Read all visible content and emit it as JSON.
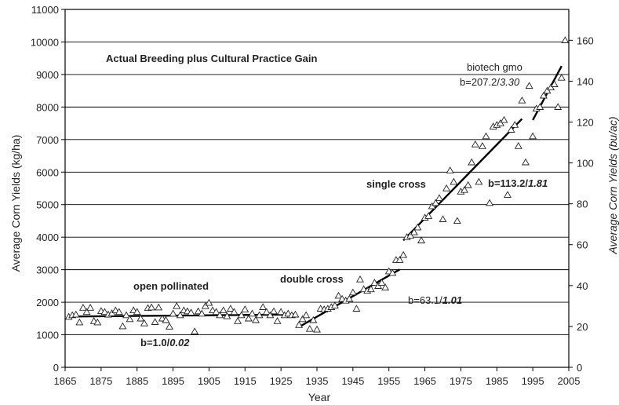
{
  "chart_data": {
    "type": "scatter",
    "title": "Actual Breeding plus Cultural Practice Gain",
    "xlabel": "Year",
    "ylabel": "Average Corn Yields (kg/ha)",
    "y2label": "Average Corn Yields (bu/ac)",
    "xlim": [
      1865,
      2005
    ],
    "ylim": [
      0,
      11000
    ],
    "y2lim": [
      0,
      175.1
    ],
    "x_ticks": [
      1865,
      1875,
      1885,
      1895,
      1905,
      1915,
      1925,
      1935,
      1945,
      1955,
      1965,
      1975,
      1985,
      1995,
      2005
    ],
    "y_ticks": [
      0,
      1000,
      2000,
      3000,
      4000,
      5000,
      6000,
      7000,
      8000,
      9000,
      10000,
      11000
    ],
    "y2_ticks": [
      0,
      20,
      40,
      60,
      80,
      100,
      120,
      140,
      160
    ],
    "gridlines": "horizontal",
    "marker": "open-triangle",
    "series": [
      {
        "points": [
          [
            1866,
            1550
          ],
          [
            1867,
            1600
          ],
          [
            1868,
            1620
          ],
          [
            1869,
            1380
          ],
          [
            1870,
            1830
          ],
          [
            1871,
            1700
          ],
          [
            1872,
            1830
          ],
          [
            1873,
            1420
          ],
          [
            1874,
            1380
          ],
          [
            1875,
            1730
          ],
          [
            1876,
            1700
          ],
          [
            1877,
            1620
          ],
          [
            1878,
            1660
          ],
          [
            1879,
            1750
          ],
          [
            1880,
            1700
          ],
          [
            1881,
            1260
          ],
          [
            1882,
            1600
          ],
          [
            1883,
            1480
          ],
          [
            1884,
            1750
          ],
          [
            1885,
            1700
          ],
          [
            1886,
            1500
          ],
          [
            1887,
            1350
          ],
          [
            1888,
            1820
          ],
          [
            1889,
            1840
          ],
          [
            1890,
            1390
          ],
          [
            1891,
            1840
          ],
          [
            1892,
            1500
          ],
          [
            1893,
            1450
          ],
          [
            1894,
            1250
          ],
          [
            1895,
            1650
          ],
          [
            1896,
            1880
          ],
          [
            1897,
            1600
          ],
          [
            1898,
            1750
          ],
          [
            1899,
            1720
          ],
          [
            1900,
            1680
          ],
          [
            1901,
            1100
          ],
          [
            1902,
            1720
          ],
          [
            1903,
            1650
          ],
          [
            1904,
            1880
          ],
          [
            1905,
            1980
          ],
          [
            1906,
            1750
          ],
          [
            1907,
            1700
          ],
          [
            1908,
            1600
          ],
          [
            1909,
            1750
          ],
          [
            1910,
            1570
          ],
          [
            1911,
            1800
          ],
          [
            1912,
            1700
          ],
          [
            1913,
            1420
          ],
          [
            1914,
            1600
          ],
          [
            1915,
            1780
          ],
          [
            1916,
            1500
          ],
          [
            1917,
            1650
          ],
          [
            1918,
            1450
          ],
          [
            1919,
            1600
          ],
          [
            1920,
            1850
          ],
          [
            1921,
            1700
          ],
          [
            1922,
            1600
          ],
          [
            1923,
            1720
          ],
          [
            1924,
            1420
          ],
          [
            1925,
            1700
          ],
          [
            1926,
            1600
          ],
          [
            1927,
            1650
          ],
          [
            1928,
            1600
          ],
          [
            1929,
            1620
          ],
          [
            1930,
            1300
          ],
          [
            1931,
            1480
          ],
          [
            1932,
            1600
          ],
          [
            1933,
            1180
          ],
          [
            1934,
            1450
          ],
          [
            1935,
            1160
          ],
          [
            1936,
            1800
          ],
          [
            1937,
            1780
          ],
          [
            1938,
            1800
          ],
          [
            1939,
            1850
          ],
          [
            1940,
            1900
          ],
          [
            1941,
            2200
          ],
          [
            1942,
            2100
          ],
          [
            1943,
            2050
          ],
          [
            1944,
            2100
          ],
          [
            1945,
            2300
          ],
          [
            1946,
            1800
          ],
          [
            1947,
            2700
          ],
          [
            1948,
            2400
          ],
          [
            1949,
            2350
          ],
          [
            1950,
            2400
          ],
          [
            1951,
            2600
          ],
          [
            1952,
            2500
          ],
          [
            1953,
            2600
          ],
          [
            1954,
            2450
          ],
          [
            1955,
            2950
          ],
          [
            1956,
            2900
          ],
          [
            1957,
            3300
          ],
          [
            1958,
            3300
          ],
          [
            1959,
            3450
          ],
          [
            1960,
            4000
          ],
          [
            1961,
            4050
          ],
          [
            1962,
            4150
          ],
          [
            1963,
            4300
          ],
          [
            1964,
            3900
          ],
          [
            1965,
            4600
          ],
          [
            1966,
            4650
          ],
          [
            1967,
            4950
          ],
          [
            1968,
            5050
          ],
          [
            1969,
            5200
          ],
          [
            1970,
            4550
          ],
          [
            1971,
            5500
          ],
          [
            1972,
            6050
          ],
          [
            1973,
            5700
          ],
          [
            1974,
            4500
          ],
          [
            1975,
            5400
          ],
          [
            1976,
            5450
          ],
          [
            1977,
            5600
          ],
          [
            1978,
            6300
          ],
          [
            1979,
            6850
          ],
          [
            1980,
            5700
          ],
          [
            1981,
            6800
          ],
          [
            1982,
            7100
          ],
          [
            1983,
            5050
          ],
          [
            1984,
            7400
          ],
          [
            1985,
            7450
          ],
          [
            1986,
            7500
          ],
          [
            1987,
            7600
          ],
          [
            1988,
            5300
          ],
          [
            1989,
            7300
          ],
          [
            1990,
            7450
          ],
          [
            1991,
            6800
          ],
          [
            1992,
            8200
          ],
          [
            1993,
            6300
          ],
          [
            1994,
            8650
          ],
          [
            1995,
            7100
          ],
          [
            1996,
            7950
          ],
          [
            1997,
            8000
          ],
          [
            1998,
            8350
          ],
          [
            1999,
            8500
          ],
          [
            2000,
            8600
          ],
          [
            2001,
            8700
          ],
          [
            2002,
            8000
          ],
          [
            2003,
            8900
          ],
          [
            2004,
            10050
          ]
        ]
      }
    ],
    "trend_lines": [
      {
        "label": "b=1.0/",
        "label_italic": "0.02",
        "x": [
          1866,
          1929
        ],
        "y": [
          1560,
          1623
        ]
      },
      {
        "label": "b=63.1/",
        "label_italic": "1.01",
        "x": [
          1930,
          1958
        ],
        "y": [
          1240,
          3007
        ]
      },
      {
        "label": "b=113.2/",
        "label_italic": "1.81",
        "x": [
          1959,
          1992
        ],
        "y": [
          3900,
          7636
        ]
      },
      {
        "label": "b=207.2/",
        "label_italic": "3.30",
        "x": [
          1995,
          2003
        ],
        "y": [
          7600,
          9258
        ]
      }
    ],
    "annotations": [
      "open pollinated",
      "double cross",
      "single cross",
      "biotech gmo"
    ]
  }
}
